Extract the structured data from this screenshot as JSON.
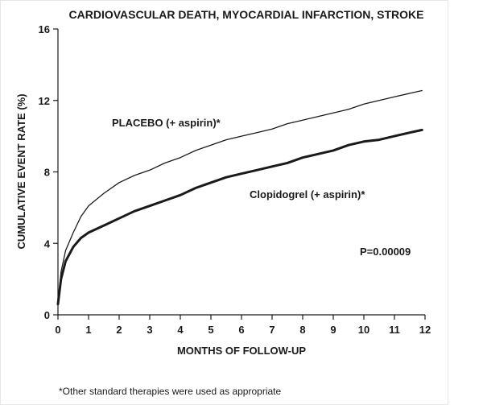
{
  "chart_data": {
    "type": "line",
    "title": "CARDIOVASCULAR DEATH, MYOCARDIAL INFARCTION, STROKE",
    "xlabel": "MONTHS OF FOLLOW-UP",
    "ylabel": "CUMULATIVE EVENT RATE (%)",
    "xlim": [
      0,
      12
    ],
    "ylim": [
      0,
      16
    ],
    "x_ticks": [
      "0",
      "1",
      "2",
      "3",
      "4",
      "5",
      "6",
      "7",
      "8",
      "9",
      "10",
      "11",
      "12"
    ],
    "y_ticks": [
      "0",
      "4",
      "8",
      "12",
      "16"
    ],
    "grid": false,
    "series": [
      {
        "name": "PLACEBO (+ aspirin)*",
        "line_width": 1.3,
        "color": "#1a1a1a",
        "points": [
          [
            0,
            0.6
          ],
          [
            0.1,
            2.4
          ],
          [
            0.25,
            3.6
          ],
          [
            0.5,
            4.6
          ],
          [
            0.75,
            5.5
          ],
          [
            1,
            6.1
          ],
          [
            1.5,
            6.8
          ],
          [
            2,
            7.4
          ],
          [
            2.5,
            7.8
          ],
          [
            3,
            8.1
          ],
          [
            3.5,
            8.5
          ],
          [
            4,
            8.8
          ],
          [
            4.5,
            9.2
          ],
          [
            5,
            9.5
          ],
          [
            5.5,
            9.8
          ],
          [
            6,
            10.0
          ],
          [
            6.5,
            10.2
          ],
          [
            7,
            10.4
          ],
          [
            7.5,
            10.7
          ],
          [
            8,
            10.9
          ],
          [
            8.5,
            11.1
          ],
          [
            9,
            11.3
          ],
          [
            9.5,
            11.5
          ],
          [
            10,
            11.8
          ],
          [
            10.5,
            12.0
          ],
          [
            11,
            12.2
          ],
          [
            11.5,
            12.4
          ],
          [
            11.9,
            12.55
          ]
        ]
      },
      {
        "name": "Clopidogrel (+ aspirin)*",
        "line_width": 3,
        "color": "#1a1a1a",
        "points": [
          [
            0,
            0.6
          ],
          [
            0.1,
            2.0
          ],
          [
            0.25,
            3.0
          ],
          [
            0.5,
            3.8
          ],
          [
            0.75,
            4.3
          ],
          [
            1,
            4.6
          ],
          [
            1.5,
            5.0
          ],
          [
            2,
            5.4
          ],
          [
            2.5,
            5.8
          ],
          [
            3,
            6.1
          ],
          [
            3.5,
            6.4
          ],
          [
            4,
            6.7
          ],
          [
            4.5,
            7.1
          ],
          [
            5,
            7.4
          ],
          [
            5.5,
            7.7
          ],
          [
            6,
            7.9
          ],
          [
            6.5,
            8.1
          ],
          [
            7,
            8.3
          ],
          [
            7.5,
            8.5
          ],
          [
            8,
            8.8
          ],
          [
            8.5,
            9.0
          ],
          [
            9,
            9.2
          ],
          [
            9.5,
            9.5
          ],
          [
            10,
            9.7
          ],
          [
            10.5,
            9.8
          ],
          [
            11,
            10.0
          ],
          [
            11.5,
            10.2
          ],
          [
            11.9,
            10.35
          ]
        ]
      }
    ],
    "annotations": [
      {
        "id": "pvalue",
        "text": "P=0.00009"
      }
    ],
    "footnote": "*Other standard therapies were used as appropriate"
  }
}
